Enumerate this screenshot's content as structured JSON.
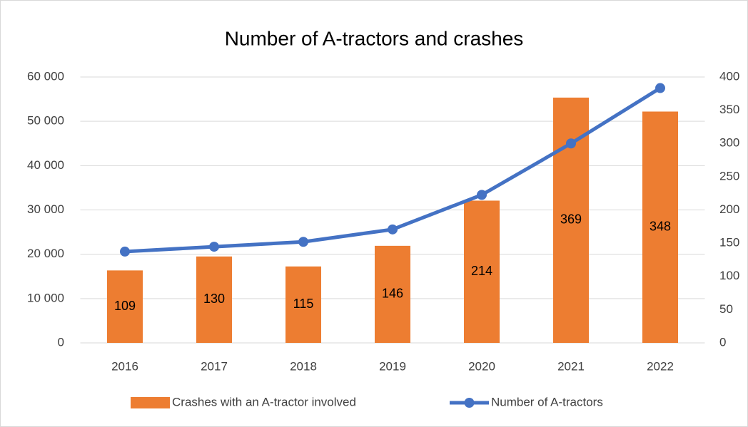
{
  "chart_data": {
    "type": "bar_line",
    "title": "Number of A-tractors and crashes",
    "categories": [
      "2016",
      "2017",
      "2018",
      "2019",
      "2020",
      "2021",
      "2022"
    ],
    "series": [
      {
        "name": "Crashes with an A-tractor involved",
        "type": "bar",
        "axis": "y2",
        "color": "#ed7d31",
        "values": [
          109,
          130,
          115,
          146,
          214,
          369,
          348
        ]
      },
      {
        "name": "Number of A-tractors",
        "type": "line",
        "axis": "y",
        "color": "#4472c4",
        "values": [
          20600,
          21700,
          22800,
          25600,
          33400,
          45000,
          57500
        ]
      }
    ],
    "ylim": [
      0,
      60000
    ],
    "yticks": [
      0,
      {
        "value": 10000,
        "label": "10 000"
      },
      {
        "value": 20000,
        "label": "20 000"
      },
      {
        "value": 30000,
        "label": "30 000"
      },
      {
        "value": 40000,
        "label": "40 000"
      },
      {
        "value": 50000,
        "label": "50 000"
      },
      {
        "value": 60000,
        "label": "60 000"
      }
    ],
    "y2lim": [
      0,
      400
    ],
    "y2ticks": [
      0,
      50,
      100,
      150,
      200,
      250,
      300,
      350,
      400
    ],
    "grid": true,
    "legend": "bottom"
  }
}
